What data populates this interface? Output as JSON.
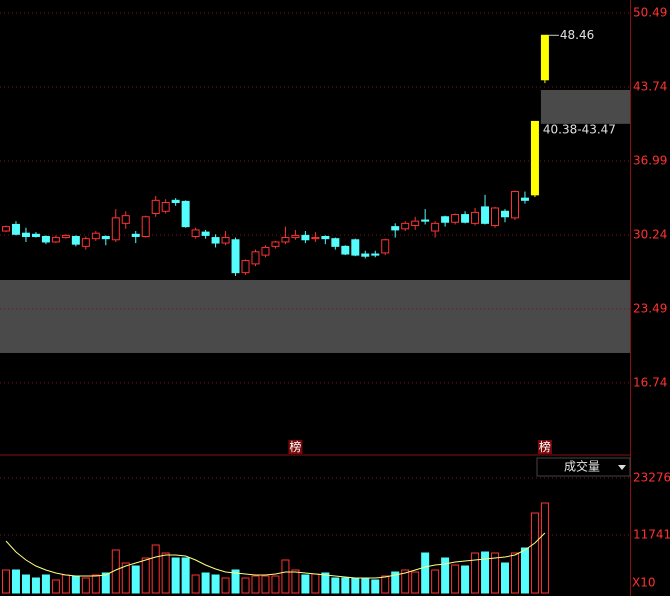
{
  "chart_data": {
    "type": "candlestick",
    "open": [
      30.6,
      31.2,
      30.4,
      30.3,
      30.1,
      29.6,
      30.0,
      30.1,
      29.2,
      29.9,
      30.1,
      29.8,
      31.3,
      30.3,
      30.1,
      32.2,
      32.4,
      33.4,
      33.3,
      30.1,
      30.5,
      30.0,
      29.5,
      29.8,
      26.8,
      27.6,
      28.4,
      29.2,
      29.6,
      30.0,
      30.2,
      29.9,
      30.1,
      29.9,
      29.2,
      29.8,
      28.5,
      28.5,
      28.6,
      31.0,
      30.8,
      31.1,
      31.6,
      30.6,
      31.9,
      31.4,
      32.1,
      31.3,
      32.8,
      31.1,
      32.4,
      31.8,
      33.6,
      33.9,
      44.4
    ],
    "high": [
      31.1,
      31.5,
      30.9,
      30.5,
      30.2,
      30.2,
      30.3,
      30.2,
      30.1,
      30.6,
      30.2,
      32.6,
      32.4,
      30.6,
      32.0,
      33.8,
      33.5,
      33.6,
      33.4,
      30.9,
      30.7,
      30.3,
      30.6,
      30.0,
      28.0,
      28.9,
      29.3,
      29.7,
      31.0,
      30.7,
      30.6,
      30.5,
      30.2,
      30.0,
      29.3,
      29.9,
      28.8,
      28.8,
      29.9,
      31.3,
      31.5,
      31.9,
      32.6,
      31.5,
      32.0,
      32.2,
      32.4,
      32.7,
      33.9,
      32.8,
      32.6,
      34.3,
      34.2,
      40.6,
      48.46
    ],
    "low": [
      30.5,
      30.2,
      29.6,
      30.0,
      29.4,
      29.5,
      29.9,
      29.2,
      28.9,
      29.7,
      29.3,
      29.6,
      30.8,
      29.5,
      30.0,
      31.9,
      32.2,
      32.9,
      30.9,
      29.9,
      29.9,
      29.1,
      29.3,
      26.5,
      26.6,
      27.4,
      28.2,
      29.0,
      29.4,
      29.8,
      29.5,
      29.6,
      29.4,
      28.9,
      28.4,
      28.3,
      28.1,
      28.2,
      28.4,
      30.0,
      30.6,
      30.7,
      31.2,
      30.0,
      31.0,
      31.2,
      31.3,
      31.1,
      31.2,
      30.9,
      31.4,
      31.6,
      33.1,
      33.7,
      44.1
    ],
    "close": [
      31.0,
      30.3,
      30.1,
      30.1,
      29.6,
      30.0,
      30.2,
      29.4,
      29.9,
      30.4,
      29.9,
      31.8,
      32.0,
      30.1,
      31.9,
      33.4,
      33.2,
      33.2,
      31.0,
      30.7,
      30.2,
      29.5,
      30.0,
      26.8,
      27.9,
      28.7,
      29.1,
      29.6,
      30.0,
      30.2,
      29.8,
      30.0,
      29.9,
      29.2,
      28.5,
      28.4,
      28.3,
      28.4,
      29.8,
      30.7,
      31.3,
      31.5,
      31.5,
      31.3,
      31.4,
      32.1,
      31.4,
      32.3,
      31.3,
      32.7,
      31.9,
      34.2,
      33.4,
      40.6,
      48.46
    ],
    "colors": [
      "#ff3232",
      "#54fcfc",
      "#54fcfc",
      "#54fcfc",
      "#54fcfc",
      "#ff3232",
      "#ff3232",
      "#54fcfc",
      "#ff3232",
      "#ff3232",
      "#54fcfc",
      "#ff3232",
      "#ff3232",
      "#54fcfc",
      "#ff3232",
      "#ff3232",
      "#ff3232",
      "#54fcfc",
      "#54fcfc",
      "#ff3232",
      "#54fcfc",
      "#54fcfc",
      "#ff3232",
      "#54fcfc",
      "#ff3232",
      "#ff3232",
      "#ff3232",
      "#ff3232",
      "#ff3232",
      "#ff3232",
      "#54fcfc",
      "#ff3232",
      "#54fcfc",
      "#54fcfc",
      "#54fcfc",
      "#54fcfc",
      "#54fcfc",
      "#54fcfc",
      "#ff3232",
      "#54fcfc",
      "#ff3232",
      "#ff3232",
      "#54fcfc",
      "#ff3232",
      "#54fcfc",
      "#ff3232",
      "#54fcfc",
      "#ff3232",
      "#54fcfc",
      "#ff3232",
      "#54fcfc",
      "#ff3232",
      "#54fcfc",
      "#ffff00",
      "#ffff00"
    ],
    "up_color": "#ff3232",
    "down_color": "#54fcfc",
    "ylim": [
      10.16,
      51.68
    ],
    "yticks": [
      16.74,
      23.49,
      30.24,
      36.99,
      43.74,
      50.49
    ],
    "grid": true,
    "zones": [
      {
        "low": 19.47,
        "high": 26.13,
        "start": 0
      },
      {
        "low": 40.38,
        "high": 43.47,
        "start": 54,
        "label": "40.38-43.47"
      }
    ],
    "markers": [
      {
        "index": 29,
        "label": "榜"
      },
      {
        "index": 54,
        "label": "榜"
      }
    ],
    "volume": {
      "name": "成交量",
      "unit": "X10",
      "values": [
        4655,
        4655,
        3643,
        3036,
        3643,
        2631,
        3643,
        3441,
        3036,
        3643,
        4048,
        8703,
        6072,
        5465,
        7084,
        9715,
        8096,
        7084,
        7084,
        3643,
        4048,
        3643,
        3036,
        4655,
        3036,
        3441,
        3441,
        3441,
        6679,
        4655,
        3643,
        3846,
        4048,
        3036,
        3036,
        3036,
        3036,
        2631,
        3441,
        4250,
        4655,
        4250,
        8096,
        4655,
        7084,
        5667,
        5465,
        8096,
        8298,
        8096,
        6072,
        8096,
        9108,
        16192,
        18216
      ],
      "ma": [
        10525,
        8298,
        6679,
        5465,
        4655,
        4048,
        3643,
        3441,
        3441,
        3441,
        3643,
        4655,
        5465,
        6072,
        6679,
        7286,
        7691,
        7691,
        7489,
        6679,
        5667,
        4858,
        4250,
        4048,
        3846,
        3643,
        3643,
        3846,
        4250,
        4250,
        4048,
        3846,
        3643,
        3441,
        3238,
        3036,
        3036,
        3036,
        3238,
        3643,
        4048,
        4655,
        5262,
        5667,
        5870,
        6274,
        6477,
        6679,
        6882,
        7084,
        7286,
        7691,
        8703,
        10120,
        12144
      ],
      "ma_color": "#ffff80",
      "ylim": [
        0,
        23276
      ],
      "yticks": [
        11741,
        23276
      ]
    }
  }
}
